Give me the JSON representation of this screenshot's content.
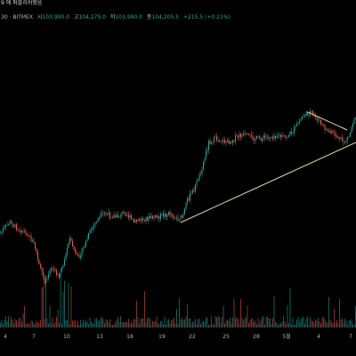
{
  "header": {
    "title_line": "9 에 퍼블리쉬했음",
    "symbol_text": "30 · BITMEX",
    "open_label": "시",
    "open_value": "103,990.0",
    "high_label": "고",
    "high_value": "104,275.0",
    "low_label": "저",
    "low_value": "103,990.0",
    "close_label": "종",
    "close_value": "104,205.5",
    "change_text": "+215.5 (+0.21%)"
  },
  "colors": {
    "background": "#000000",
    "up": "#26a69a",
    "down": "#ef5350",
    "trendline": "#e8d8a0",
    "axis_text": "#b2b5be"
  },
  "chart_data": {
    "type": "candlestick",
    "x_ticks": [
      "4",
      "7",
      "10",
      "13",
      "16",
      "19",
      "22",
      "25",
      "28",
      "5월",
      "4",
      "7"
    ],
    "trendlines": [
      {
        "name": "support",
        "from": {
          "x": "21",
          "y": "low"
        },
        "to": {
          "x": "7",
          "y": "high"
        }
      },
      {
        "name": "channel-top",
        "from": {
          "x": "5월",
          "y": "high"
        },
        "to": {
          "x": "5",
          "y": "lower-high"
        }
      }
    ],
    "volume_shown": true,
    "grid": false
  }
}
